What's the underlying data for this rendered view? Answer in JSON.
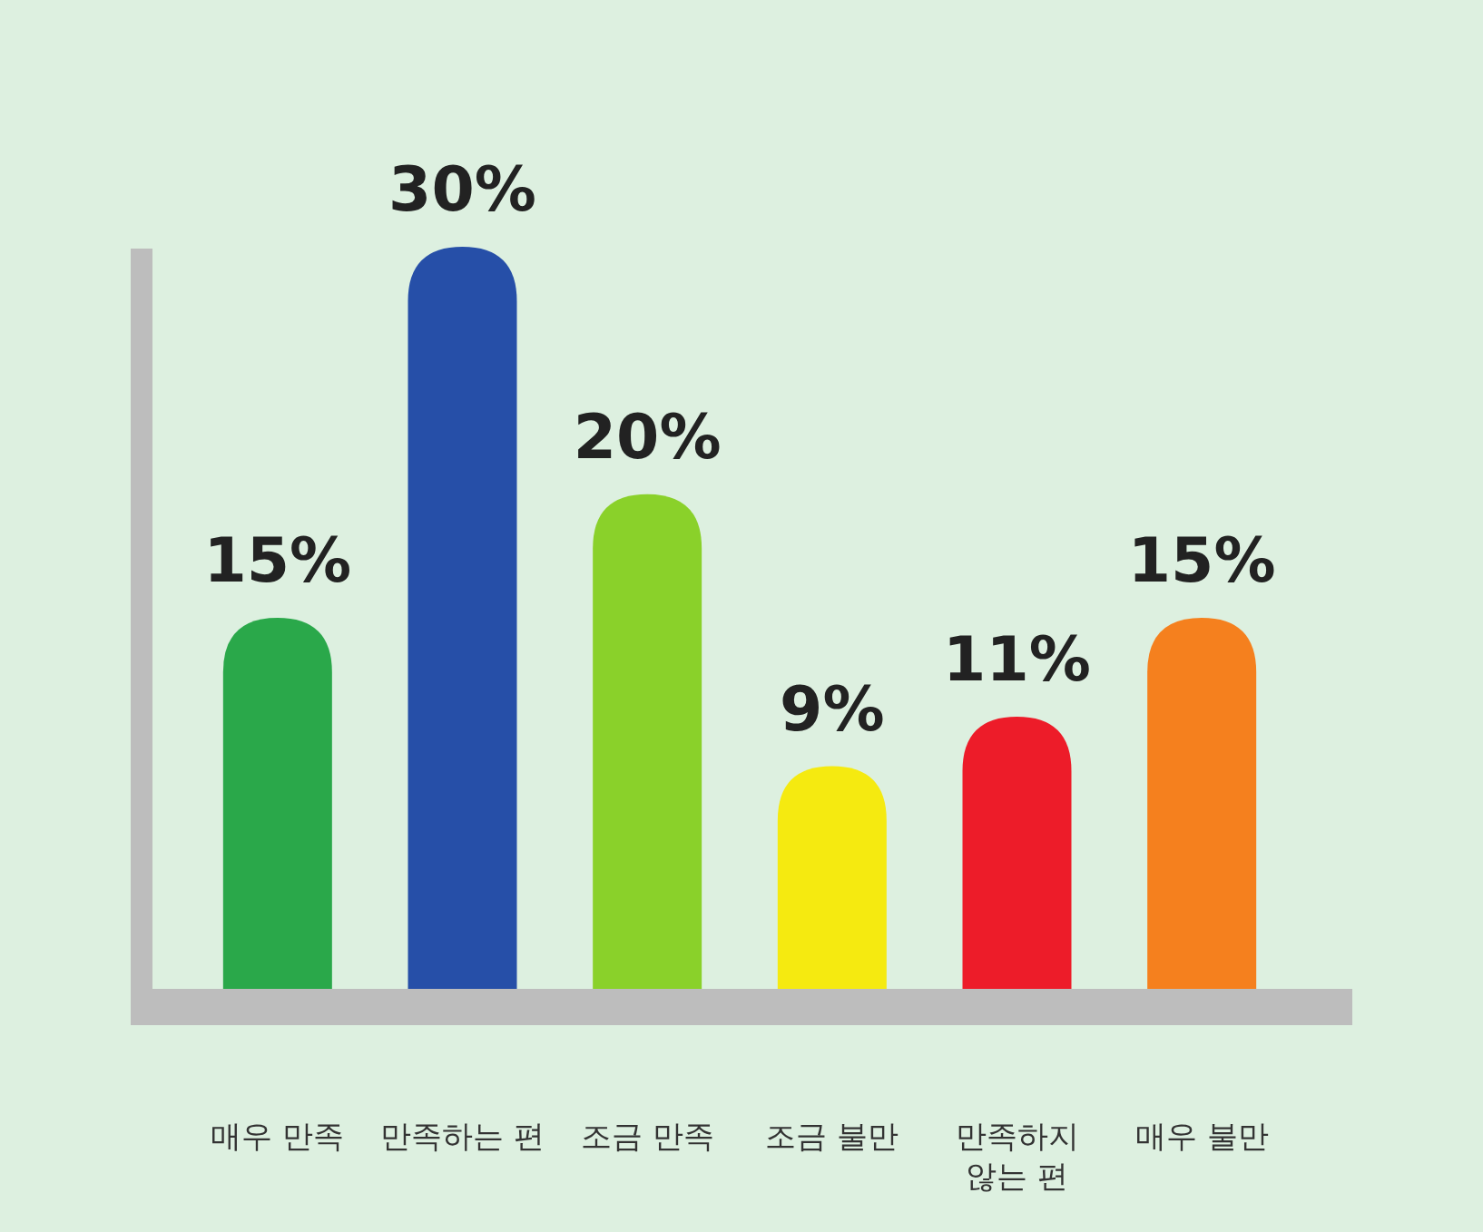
{
  "chart_data": {
    "type": "bar",
    "categories": [
      "매우 만족",
      "만족하는 편",
      "조금 만족",
      "조금 불만",
      "만족하지 않는 편",
      "매우 불만"
    ],
    "values": [
      15,
      30,
      20,
      9,
      11,
      15
    ],
    "colors": [
      "#2aa84a",
      "#264fa8",
      "#8ad12a",
      "#f5ea10",
      "#ed1c29",
      "#f5801e"
    ],
    "value_labels": [
      "15%",
      "30%",
      "20%",
      "9%",
      "11%",
      "15%"
    ]
  }
}
